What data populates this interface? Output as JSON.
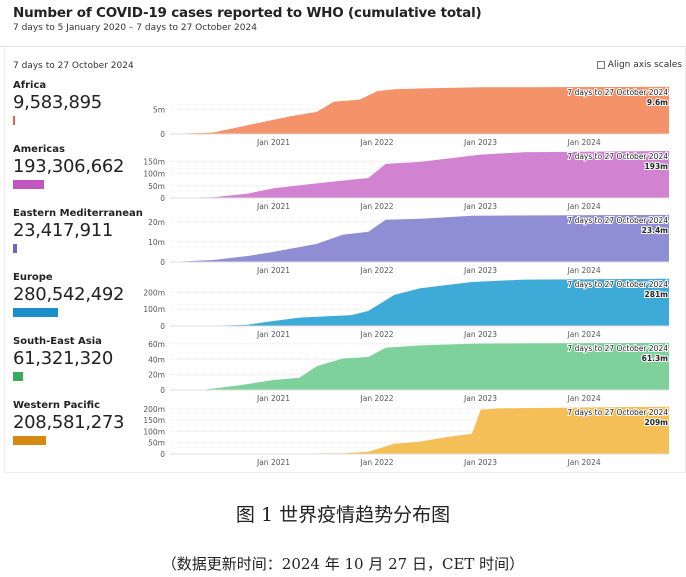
{
  "header": {
    "title": "Number of COVID-19 cases reported to WHO (cumulative total)",
    "subtitle": "7 days to 5 January 2020 – 7 days to 27 October 2024"
  },
  "controls": {
    "period_label": "7 days to 27 October 2024",
    "align_axis_label": "Align axis scales",
    "align_axis_checked": false
  },
  "caption": "图 1  世界疫情趋势分布图",
  "update_note": "（数据更新时间：2024 年 10 月 27 日，CET 时间）",
  "regions": [
    {
      "name": "Africa",
      "total": "9,583,895",
      "color": "#f4936a",
      "bar_color": "#e2604a"
    },
    {
      "name": "Americas",
      "total": "193,306,662",
      "color": "#d182d1",
      "bar_color": "#c156c1"
    },
    {
      "name": "Eastern Mediterranean",
      "total": "23,417,911",
      "color": "#8f8dd3",
      "bar_color": "#6a66c8"
    },
    {
      "name": "Europe",
      "total": "280,542,492",
      "color": "#3eaad8",
      "bar_color": "#1c8fcb"
    },
    {
      "name": "South-East Asia",
      "total": "61,321,320",
      "color": "#7fd19b",
      "bar_color": "#3aa960"
    },
    {
      "name": "Western Pacific",
      "total": "208,581,273",
      "color": "#f5bf58",
      "bar_color": "#d48a10"
    }
  ],
  "chart_data": [
    {
      "type": "area",
      "title": "Africa",
      "unit": "millions",
      "x_ticks": [
        "Jan 2021",
        "Jan 2022",
        "Jan 2023",
        "Jan 2024"
      ],
      "y_ticks": [
        "0",
        "5m"
      ],
      "y_tick_values": [
        0,
        5
      ],
      "total_value": 9.583895,
      "latest_label": "7 days to 27 October 2024",
      "latest_value_label": "9.6m",
      "x": [
        "2020-01",
        "2020-06",
        "2020-09",
        "2021-01",
        "2021-03",
        "2021-06",
        "2021-08",
        "2021-11",
        "2022-01",
        "2022-03",
        "2022-07",
        "2023-01",
        "2024-10"
      ],
      "y": [
        0,
        0.3,
        1.4,
        2.9,
        3.6,
        4.5,
        6.6,
        7.0,
        8.7,
        9.1,
        9.3,
        9.5,
        9.6
      ]
    },
    {
      "type": "area",
      "title": "Americas",
      "unit": "millions",
      "x_ticks": [
        "Jan 2021",
        "Jan 2022",
        "Jan 2023",
        "Jan 2024"
      ],
      "y_ticks": [
        "0",
        "50m",
        "100m",
        "150m"
      ],
      "y_tick_values": [
        0,
        50,
        100,
        150
      ],
      "total_value": 193.306662,
      "latest_label": "7 days to 27 October 2024",
      "latest_value_label": "193m",
      "x": [
        "2020-01",
        "2020-06",
        "2020-10",
        "2021-01",
        "2021-06",
        "2021-10",
        "2021-12",
        "2022-02",
        "2022-06",
        "2022-10",
        "2023-01",
        "2023-06",
        "2024-10"
      ],
      "y": [
        0,
        3,
        18,
        40,
        60,
        75,
        82,
        140,
        148,
        165,
        178,
        188,
        193
      ]
    },
    {
      "type": "area",
      "title": "Eastern Mediterranean",
      "unit": "millions",
      "x_ticks": [
        "Jan 2021",
        "Jan 2022",
        "Jan 2023",
        "Jan 2024"
      ],
      "y_ticks": [
        "0",
        "10m",
        "20m"
      ],
      "y_tick_values": [
        0,
        10,
        20
      ],
      "total_value": 23.417911,
      "latest_label": "7 days to 27 October 2024",
      "latest_value_label": "23.4m",
      "x": [
        "2020-01",
        "2020-06",
        "2020-10",
        "2021-01",
        "2021-06",
        "2021-09",
        "2021-12",
        "2022-02",
        "2022-06",
        "2022-12",
        "2024-10"
      ],
      "y": [
        0,
        1,
        3,
        5,
        9,
        13.5,
        15,
        21,
        21.5,
        23,
        23.4
      ]
    },
    {
      "type": "area",
      "title": "Europe",
      "unit": "millions",
      "x_ticks": [
        "Jan 2021",
        "Jan 2022",
        "Jan 2023",
        "Jan 2024"
      ],
      "y_ticks": [
        "0",
        "100m",
        "200m"
      ],
      "y_tick_values": [
        0,
        100,
        200
      ],
      "total_value": 280.542492,
      "latest_label": "7 days to 27 October 2024",
      "latest_value_label": "281m",
      "x": [
        "2020-01",
        "2020-06",
        "2020-10",
        "2021-01",
        "2021-04",
        "2021-10",
        "2021-12",
        "2022-03",
        "2022-06",
        "2022-12",
        "2023-06",
        "2024-10"
      ],
      "y": [
        0,
        2,
        8,
        30,
        50,
        65,
        90,
        185,
        225,
        262,
        276,
        281
      ]
    },
    {
      "type": "area",
      "title": "South-East Asia",
      "unit": "millions",
      "x_ticks": [
        "Jan 2021",
        "Jan 2022",
        "Jan 2023",
        "Jan 2024"
      ],
      "y_ticks": [
        "0",
        "20m",
        "40m",
        "60m"
      ],
      "y_tick_values": [
        0,
        20,
        40,
        60
      ],
      "total_value": 61.32132,
      "latest_label": "7 days to 27 October 2024",
      "latest_value_label": "61.3m",
      "x": [
        "2020-01",
        "2020-05",
        "2020-09",
        "2021-01",
        "2021-04",
        "2021-06",
        "2021-09",
        "2021-12",
        "2022-02",
        "2022-06",
        "2023-01",
        "2024-10"
      ],
      "y": [
        0,
        0.5,
        6,
        13,
        16,
        31,
        41,
        43,
        55,
        58,
        60.5,
        61.3
      ]
    },
    {
      "type": "area",
      "title": "Western Pacific",
      "unit": "millions",
      "x_ticks": [
        "Jan 2021",
        "Jan 2022",
        "Jan 2023",
        "Jan 2024"
      ],
      "y_ticks": [
        "0",
        "50m",
        "100m",
        "150m",
        "200m"
      ],
      "y_tick_values": [
        0,
        50,
        100,
        150,
        200
      ],
      "total_value": 208.581273,
      "latest_label": "7 days to 27 October 2024",
      "latest_value_label": "209m",
      "x": [
        "2020-01",
        "2021-01",
        "2021-09",
        "2021-12",
        "2022-03",
        "2022-06",
        "2022-09",
        "2022-12",
        "2023-01",
        "2023-03",
        "2024-10"
      ],
      "y": [
        0,
        1,
        3,
        10,
        45,
        55,
        75,
        90,
        196,
        202,
        209
      ]
    }
  ]
}
